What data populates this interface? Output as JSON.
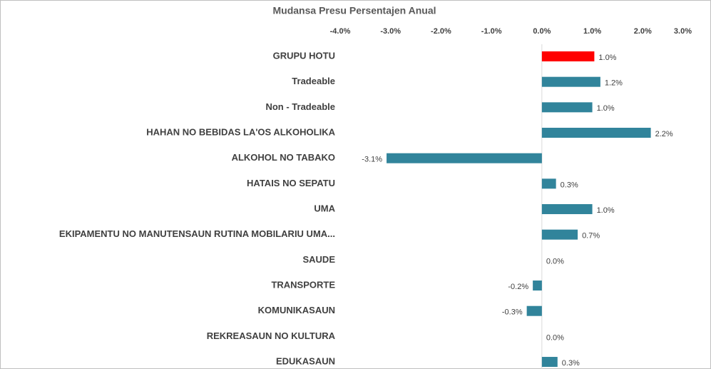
{
  "chart_data": {
    "type": "barh",
    "title": "Mudansa Presu Persentajen Anual",
    "categories": [
      "GRUPU HOTU",
      "Tradeable",
      "Non - Tradeable",
      "HAHAN NO BEBIDAS LA'OS ALKOHOLIKA",
      "ALKOHOL NO TABAKO",
      "HATAIS NO SEPATU",
      "UMA",
      "EKIPAMENTU NO MANUTENSAUN RUTINA MOBILARIU UMA...",
      "SAUDE",
      "TRANSPORTE",
      "KOMUNIKASAUN",
      "REKREASAUN NO KULTURA",
      "EDUKASAUN"
    ],
    "values": [
      1.04,
      1.16,
      1.0,
      2.16,
      -3.08,
      0.28,
      1.0,
      0.71,
      0,
      -0.18,
      -0.3,
      0,
      0.31
    ],
    "value_labels": [
      "1.0%",
      "1.2%",
      "1.0%",
      "2.2%",
      "-3.1%",
      "0.3%",
      "1.0%",
      "0.7%",
      "0.0%",
      "-0.2%",
      "-0.3%",
      "0.0%",
      "0.3%"
    ],
    "colors": [
      "#ff0000",
      "#31849b",
      "#31849b",
      "#31849b",
      "#31849b",
      "#31849b",
      "#31849b",
      "#31849b",
      "#31849b",
      "#31849b",
      "#31849b",
      "#31849b",
      "#31849b"
    ],
    "xlim": [
      -4,
      3
    ],
    "xticks": [
      {
        "value": -4,
        "label": "-4.0%"
      },
      {
        "value": -3,
        "label": "-3.0%"
      },
      {
        "value": -2,
        "label": "-2.0%"
      },
      {
        "value": -1,
        "label": "-1.0%"
      },
      {
        "value": 0,
        "label": "0.0%"
      },
      {
        "value": 1,
        "label": "1.0%"
      },
      {
        "value": 2,
        "label": "2.0%"
      },
      {
        "value": 3,
        "label": "3.0%"
      }
    ]
  }
}
